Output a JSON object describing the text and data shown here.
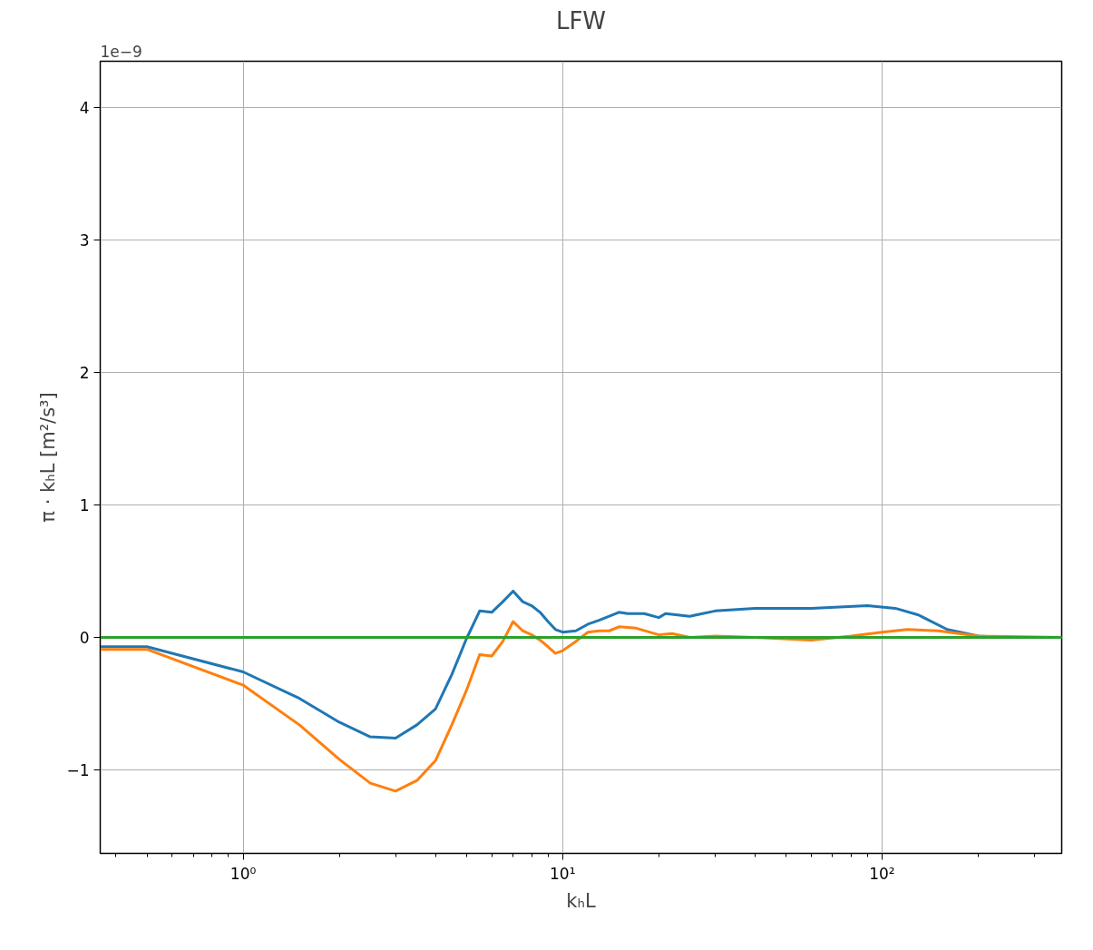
{
  "chart_data": {
    "type": "line",
    "title": "LFW",
    "xlabel": "kₕL",
    "ylabel": "π · kₕL [m²/s³]",
    "log": "x",
    "grid": true,
    "line_style": "solid",
    "marker": "none",
    "xlim": [
      0.357,
      365
    ],
    "ylim": [
      -1.63,
      4.35
    ],
    "xticks": [
      {
        "value": 1,
        "label": "10⁰"
      },
      {
        "value": 10,
        "label": "10¹"
      },
      {
        "value": 100,
        "label": "10²"
      }
    ],
    "yticks": [
      {
        "value": -1,
        "label": "−1"
      },
      0,
      1,
      2,
      3,
      4
    ],
    "annotations": [
      "1e−9"
    ],
    "series": [
      {
        "color": "#1f77b4",
        "x": [
          0.357,
          0.5,
          1,
          1.5,
          2,
          2.5,
          3,
          3.5,
          4,
          4.5,
          5,
          5.5,
          6,
          6.5,
          7,
          7.5,
          8,
          8.5,
          9,
          9.5,
          10,
          11,
          12,
          13,
          14,
          15,
          16,
          18,
          20,
          21,
          25,
          30,
          40,
          60,
          90,
          110,
          130,
          160,
          200,
          250,
          365
        ],
        "values": [
          -0.07,
          -0.07,
          -0.26,
          -0.46,
          -0.64,
          -0.75,
          -0.76,
          -0.66,
          -0.54,
          -0.28,
          -0.01,
          0.2,
          0.19,
          0.27,
          0.35,
          0.27,
          0.24,
          0.19,
          0.12,
          0.06,
          0.04,
          0.05,
          0.1,
          0.13,
          0.16,
          0.19,
          0.18,
          0.18,
          0.15,
          0.18,
          0.16,
          0.2,
          0.22,
          0.22,
          0.24,
          0.22,
          0.17,
          0.06,
          0.01,
          0,
          0
        ]
      },
      {
        "color": "#ff7f0e",
        "x": [
          0.357,
          0.5,
          1,
          1.5,
          2,
          2.5,
          3,
          3.5,
          4,
          4.5,
          5,
          5.5,
          6,
          6.5,
          7,
          7.5,
          8,
          8.5,
          9,
          9.5,
          10,
          11,
          12,
          13,
          14,
          15,
          17,
          20,
          22,
          25,
          30,
          40,
          60,
          80,
          100,
          120,
          150,
          200,
          365
        ],
        "values": [
          -0.09,
          -0.09,
          -0.36,
          -0.66,
          -0.92,
          -1.1,
          -1.16,
          -1.08,
          -0.93,
          -0.66,
          -0.4,
          -0.13,
          -0.14,
          -0.03,
          0.12,
          0.05,
          0.02,
          -0.02,
          -0.07,
          -0.12,
          -0.1,
          -0.03,
          0.04,
          0.05,
          0.05,
          0.08,
          0.07,
          0.02,
          0.03,
          0,
          0.01,
          0,
          -0.02,
          0.01,
          0.04,
          0.06,
          0.05,
          0.01,
          0
        ]
      },
      {
        "color": "#2ca02c",
        "x": [
          0.357,
          365
        ],
        "values": [
          0,
          0
        ]
      }
    ]
  }
}
